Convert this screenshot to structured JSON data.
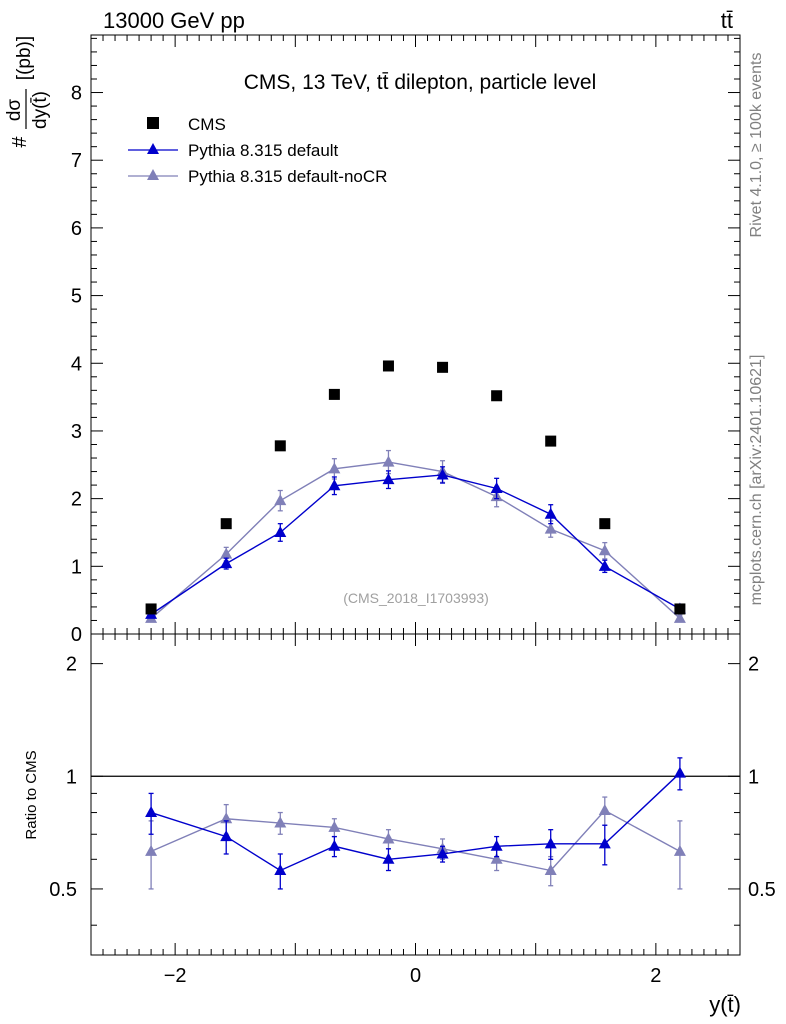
{
  "header": {
    "energy_label": "13000 GeV pp",
    "process_label": "tt̄"
  },
  "side_labels": {
    "rivet": "Rivet 4.1.0, ≥ 100k events",
    "mcplots": "mcplots.cern.ch [arXiv:2401.10621]"
  },
  "chart_data": {
    "type": "scatter",
    "title": "CMS, 13 TeV, tt̄ dilepton, particle level",
    "watermark": "(CMS_2018_I1703993)",
    "xlabel": "y(t̄)",
    "ylabel_main": "# dσ / dy(t̄) [(pb)]",
    "ylabel_main_parts": {
      "hash": "#",
      "numerator": "dσ",
      "denominator": "dy(t̄)",
      "unit": "[(pb)]"
    },
    "ylabel_ratio": "Ratio to CMS",
    "xlim": [
      -2.7,
      2.7
    ],
    "ylim_main": [
      0,
      8.85
    ],
    "ylim_ratio": [
      0.333,
      2.4
    ],
    "x": [
      -2.2,
      -1.575,
      -1.125,
      -0.675,
      -0.225,
      0.225,
      0.675,
      1.125,
      1.575,
      2.2
    ],
    "series": [
      {
        "name": "CMS",
        "color": "#000000",
        "marker": "square",
        "values": [
          0.37,
          1.63,
          2.78,
          3.54,
          3.96,
          3.94,
          3.52,
          2.85,
          1.63,
          0.37
        ],
        "errors": [
          0.02,
          0.04,
          0.05,
          0.06,
          0.06,
          0.06,
          0.06,
          0.05,
          0.04,
          0.02
        ]
      },
      {
        "name": "Pythia 8.315 default",
        "color": "#0000cc",
        "marker": "triangle",
        "values": [
          0.29,
          1.04,
          1.5,
          2.19,
          2.28,
          2.35,
          2.15,
          1.77,
          1.0,
          0.37
        ],
        "errors": [
          0.04,
          0.08,
          0.13,
          0.13,
          0.13,
          0.12,
          0.15,
          0.14,
          0.09,
          0.05
        ],
        "ratio": [
          0.8,
          0.69,
          0.56,
          0.65,
          0.6,
          0.62,
          0.65,
          0.66,
          0.66,
          1.02
        ],
        "ratio_errors": [
          0.1,
          0.07,
          0.06,
          0.04,
          0.04,
          0.03,
          0.04,
          0.06,
          0.08,
          0.1
        ]
      },
      {
        "name": "Pythia 8.315 default-noCR",
        "color": "#8080b8",
        "marker": "triangle",
        "values": [
          0.23,
          1.18,
          1.97,
          2.44,
          2.54,
          2.4,
          2.03,
          1.55,
          1.23,
          0.23
        ],
        "errors": [
          0.04,
          0.1,
          0.15,
          0.15,
          0.17,
          0.16,
          0.15,
          0.12,
          0.12,
          0.05
        ],
        "ratio": [
          0.63,
          0.77,
          0.75,
          0.73,
          0.68,
          0.64,
          0.6,
          0.56,
          0.81,
          0.63
        ],
        "ratio_errors": [
          0.13,
          0.07,
          0.05,
          0.04,
          0.04,
          0.04,
          0.04,
          0.05,
          0.07,
          0.13
        ]
      }
    ],
    "main_yticks": [
      0,
      1,
      2,
      3,
      4,
      5,
      6,
      7,
      8
    ],
    "main_ytick_labels": [
      "0",
      "1",
      "2",
      "3",
      "4",
      "5",
      "6",
      "7",
      "8"
    ],
    "ratio_yticks": [
      0.5,
      1,
      2
    ],
    "ratio_ytick_labels": [
      "0.5",
      "1",
      "2"
    ],
    "xticks": [
      -2,
      0,
      2
    ],
    "xtick_labels": [
      "−2",
      "0",
      "2"
    ],
    "ratio_reference": 1,
    "legend_position": "top-left"
  }
}
